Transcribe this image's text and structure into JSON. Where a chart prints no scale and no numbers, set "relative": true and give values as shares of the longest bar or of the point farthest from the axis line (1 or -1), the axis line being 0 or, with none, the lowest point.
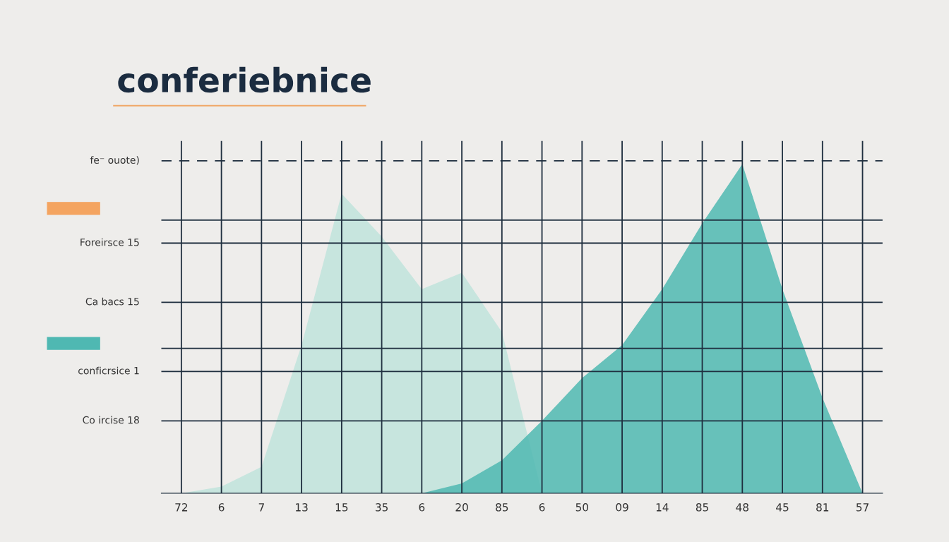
{
  "chart_data": {
    "type": "area",
    "title": "conferiebnice",
    "relative": true,
    "grid": "x",
    "categories": [
      "72",
      "6",
      "7",
      "13",
      "15",
      "35",
      "6",
      "20",
      "85",
      "6",
      "50",
      "09",
      "14",
      "85",
      "48",
      "45",
      "81",
      "57"
    ],
    "series": [
      {
        "color": "#bfe3dc",
        "values": [
          0,
          0.02,
          0.08,
          0.45,
          0.91,
          0.78,
          0.62,
          0.67,
          0.49,
          0,
          0,
          0,
          0,
          0,
          0,
          0,
          0,
          0
        ]
      },
      {
        "color": "#4fb8b2",
        "values": [
          0,
          0,
          0,
          0,
          0,
          0,
          0,
          0.03,
          0.1,
          0.22,
          0.35,
          0.45,
          0.62,
          0.82,
          1,
          0.62,
          0.29,
          0
        ]
      }
    ],
    "ref_lines": [
      {
        "axis": "y",
        "value": 1.01,
        "label": "fe⁻ ouote)",
        "color": "#1f2f3f",
        "line_style": "dashed"
      },
      {
        "axis": "y",
        "value": 0.83,
        "label": null,
        "color": "#1f2f3f"
      },
      {
        "axis": "y",
        "value": 0.76,
        "label": "Foreirsce 15",
        "color": "#1f2f3f"
      },
      {
        "axis": "y",
        "value": 0.58,
        "label": "Ca bacs 15",
        "color": "#1f2f3f"
      },
      {
        "axis": "y",
        "value": 0.44,
        "label": null,
        "color": "#1f2f3f"
      },
      {
        "axis": "y",
        "value": 0.37,
        "label": "conficrsice 1",
        "color": "#1f2f3f"
      },
      {
        "axis": "y",
        "value": 0.22,
        "label": "Co ircise 18",
        "color": "#1f2f3f"
      }
    ]
  }
}
